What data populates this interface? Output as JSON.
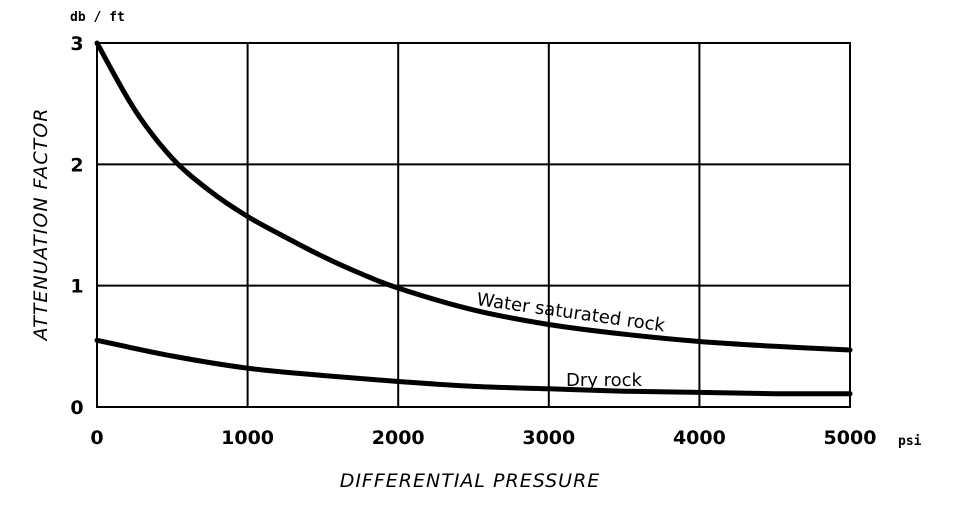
{
  "chart_data": {
    "type": "line",
    "title": "",
    "xlabel": "DIFFERENTIAL PRESSURE",
    "ylabel": "ATTENUATION FACTOR",
    "x_unit": "psi",
    "y_unit": "db / ft",
    "xlim": [
      0,
      5000
    ],
    "ylim": [
      0,
      3
    ],
    "xticks": [
      0,
      1000,
      2000,
      3000,
      4000,
      5000
    ],
    "yticks": [
      0,
      1,
      2,
      3
    ],
    "xtick_labels": [
      "0",
      "1000",
      "2000",
      "3000",
      "4000",
      "5000"
    ],
    "ytick_labels": [
      "0",
      "1",
      "2",
      "3"
    ],
    "grid": true,
    "legend": "none",
    "series": [
      {
        "name": "Water saturated rock",
        "x": [
          0,
          250,
          500,
          750,
          1000,
          1250,
          1500,
          1750,
          2000,
          2500,
          3000,
          3500,
          4000,
          4500,
          5000
        ],
        "values": [
          3.0,
          2.45,
          2.05,
          1.78,
          1.57,
          1.4,
          1.24,
          1.1,
          0.98,
          0.8,
          0.68,
          0.6,
          0.54,
          0.5,
          0.47
        ]
      },
      {
        "name": "Dry rock",
        "x": [
          0,
          500,
          1000,
          1500,
          2000,
          2500,
          3000,
          3500,
          4000,
          4500,
          5000
        ],
        "values": [
          0.55,
          0.42,
          0.32,
          0.26,
          0.21,
          0.17,
          0.15,
          0.13,
          0.12,
          0.11,
          0.11
        ]
      }
    ]
  }
}
